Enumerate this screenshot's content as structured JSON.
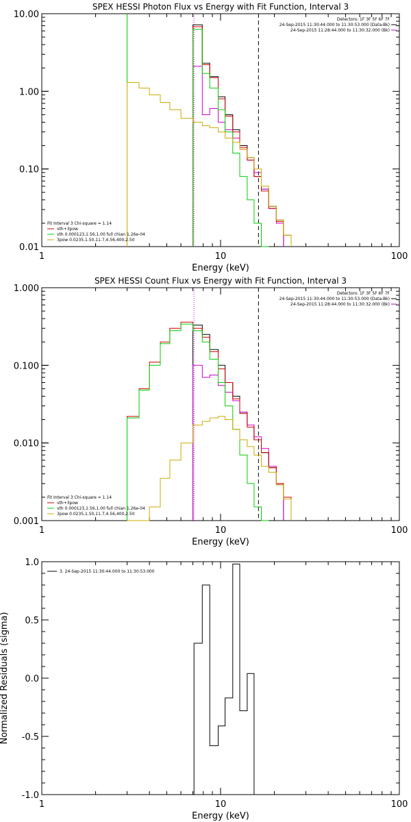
{
  "chart_data": [
    {
      "type": "line",
      "scale": "log-log",
      "title": "SPEX HESSI Photon Flux vs Energy with Fit Function, Interval 3",
      "xlabel": "Energy (keV)",
      "ylabel": "",
      "xlim": [
        1,
        100
      ],
      "ylim": [
        0.01,
        10
      ],
      "x_ticks": [
        "1",
        "10",
        "100"
      ],
      "y_ticks": [
        "0.01",
        "0.10",
        "1.00",
        "10.00"
      ],
      "legend_top": [
        "Detectors: 1F 3F 5F 6F 7F",
        "24-Sep-2015 11:30:44.000 to 11:30:53.000 (Data-Bk)",
        "24-Sep-2015 11:28:44.000 to 11:30:32.000 (Bk)"
      ],
      "legend_bottom": [
        "Fit Interval 3   Chi-square = 1.14",
        "vth+3pow",
        "vth 0.000123,1.56,1.00  full chian 1.26e-04",
        "3pow 0.0235,1.50,11.7,4.56,400,2.50"
      ],
      "vlines": [
        {
          "x": 3.0,
          "style": "solid",
          "color": "#00cc00"
        },
        {
          "x": 7.1,
          "style": "dotted",
          "color": "#cc00cc"
        },
        {
          "x": 16.3,
          "style": "dashed",
          "color": "#000000"
        }
      ],
      "edges": [
        3.0,
        3.5,
        4.0,
        4.6,
        5.2,
        6.0,
        7.0,
        7.9,
        8.7,
        9.7,
        10.6,
        11.7,
        12.8,
        14.1,
        15.4,
        16.9,
        18.6,
        20.5,
        22.5,
        24.8
      ],
      "series": [
        {
          "name": "Data-Bk",
          "color": "#000000",
          "values": [
            null,
            null,
            null,
            null,
            null,
            null,
            7.2,
            2.3,
            1.55,
            0.85,
            0.5,
            0.32,
            0.2,
            0.14,
            0.08,
            0.055,
            0.033,
            0.022,
            null
          ]
        },
        {
          "name": "Bk",
          "color": "#cc00cc",
          "values": [
            null,
            null,
            null,
            null,
            null,
            null,
            2.1,
            0.5,
            0.6,
            0.4,
            0.32,
            0.25,
            0.18,
            0.13,
            0.09,
            0.055,
            0.031,
            0.02,
            null
          ]
        },
        {
          "name": "vth+3pow",
          "color": "#cc0000",
          "values": [
            null,
            null,
            null,
            null,
            null,
            null,
            6.8,
            2.2,
            1.5,
            0.8,
            0.48,
            0.3,
            0.19,
            0.13,
            0.08,
            0.052,
            0.031,
            0.021,
            0.014
          ]
        },
        {
          "name": "vth",
          "color": "#00cc00",
          "values": [
            null,
            null,
            null,
            null,
            null,
            null,
            6.3,
            1.7,
            1.1,
            0.58,
            0.3,
            0.16,
            0.08,
            0.04,
            0.02,
            0.009,
            null,
            null,
            null
          ]
        },
        {
          "name": "3pow",
          "color": "#ccaa00",
          "values": [
            1.3,
            1.1,
            0.9,
            0.72,
            0.58,
            0.45,
            0.4,
            0.36,
            0.34,
            0.3,
            0.25,
            0.22,
            0.18,
            0.14,
            0.1,
            0.06,
            0.033,
            0.022,
            0.014
          ]
        }
      ]
    },
    {
      "type": "line",
      "scale": "log-log",
      "title": "SPEX HESSI Count Flux vs Energy with Fit Function, Interval 3",
      "xlabel": "Energy (keV)",
      "ylabel": "",
      "xlim": [
        1,
        100
      ],
      "ylim": [
        0.001,
        1
      ],
      "x_ticks": [
        "1",
        "10",
        "100"
      ],
      "y_ticks": [
        "0.001",
        "0.010",
        "0.100",
        "1.000"
      ],
      "legend_top": [
        "Detectors: 1F 3F 5F 6F 7F",
        "24-Sep-2015 11:30:44.000 to 11:30:53.000 (Data-Bk)",
        "24-Sep-2015 11:28:44.000 to 11:30:32.000 (Bk)"
      ],
      "legend_bottom": [
        "Fit Interval 3   Chi-square = 1.14",
        "vth+3pow",
        "vth 0.000123,1.56,1.00  full chian 1.26e-04",
        "3pow 0.0235,1.50,11.7,4.56,400,2.50"
      ],
      "vlines": [
        {
          "x": 7.1,
          "style": "dotted",
          "color": "#cc00cc"
        },
        {
          "x": 16.3,
          "style": "dashed",
          "color": "#000000"
        }
      ],
      "edges": [
        3.0,
        3.5,
        4.0,
        4.6,
        5.2,
        6.0,
        7.0,
        7.9,
        8.7,
        9.7,
        10.6,
        11.7,
        12.8,
        14.1,
        15.4,
        16.9,
        18.6,
        20.5,
        22.5,
        24.8
      ],
      "series": [
        {
          "name": "Data-Bk",
          "color": "#000000",
          "values": [
            null,
            null,
            null,
            null,
            null,
            null,
            0.33,
            0.25,
            0.16,
            0.1,
            0.06,
            0.04,
            0.025,
            0.017,
            0.011,
            0.0075,
            0.0048,
            0.0029,
            null
          ]
        },
        {
          "name": "Bk",
          "color": "#cc00cc",
          "values": [
            null,
            null,
            null,
            null,
            null,
            null,
            0.1,
            0.07,
            0.075,
            0.055,
            0.045,
            0.035,
            0.025,
            0.017,
            0.012,
            0.0085,
            0.005,
            0.003,
            null
          ]
        },
        {
          "name": "vth+3pow",
          "color": "#cc0000",
          "values": [
            0.022,
            0.05,
            0.11,
            0.2,
            0.3,
            0.36,
            0.3,
            0.23,
            0.15,
            0.09,
            0.06,
            0.037,
            0.024,
            0.016,
            0.011,
            0.0075,
            0.0048,
            0.003,
            0.002
          ]
        },
        {
          "name": "vth",
          "color": "#00cc00",
          "values": [
            0.021,
            0.048,
            0.1,
            0.19,
            0.28,
            0.34,
            0.28,
            0.2,
            0.12,
            0.06,
            0.03,
            0.015,
            0.007,
            0.003,
            0.0015,
            0.001,
            null,
            null,
            null
          ]
        },
        {
          "name": "3pow",
          "color": "#ccaa00",
          "values": [
            0.001,
            0.001,
            0.0015,
            0.0035,
            0.006,
            0.01,
            0.017,
            0.019,
            0.021,
            0.022,
            0.02,
            0.015,
            0.011,
            0.009,
            0.007,
            0.005,
            0.0042,
            0.0029,
            0.0019
          ]
        }
      ]
    },
    {
      "type": "line",
      "scale": "log-x",
      "title": "",
      "xlabel": "Energy (keV)",
      "ylabel": "Normalized Residuals (sigma)",
      "xlim": [
        1,
        100
      ],
      "ylim": [
        -1.0,
        1.0
      ],
      "x_ticks": [
        "1",
        "10",
        "100"
      ],
      "y_ticks": [
        "-1.0",
        "-0.5",
        "0.0",
        "0.5",
        "1.0"
      ],
      "legend_top": [
        "3. 24-Sep-2015 11:30:44.000 to 11:30:53.000"
      ],
      "legend_bottom": [],
      "vlines": [],
      "edges": [
        7.1,
        7.9,
        8.7,
        9.7,
        10.6,
        11.7,
        12.8,
        14.1,
        15.4,
        16.3
      ],
      "series": [
        {
          "name": "3. 24-Sep-2015 11:30:44.000 to 11:30:53.000",
          "color": "#000000",
          "values": [
            0.3,
            0.8,
            -0.58,
            -0.41,
            -0.17,
            0.98,
            -0.28,
            0.04,
            -1.0
          ],
          "closed": true
        }
      ]
    }
  ]
}
